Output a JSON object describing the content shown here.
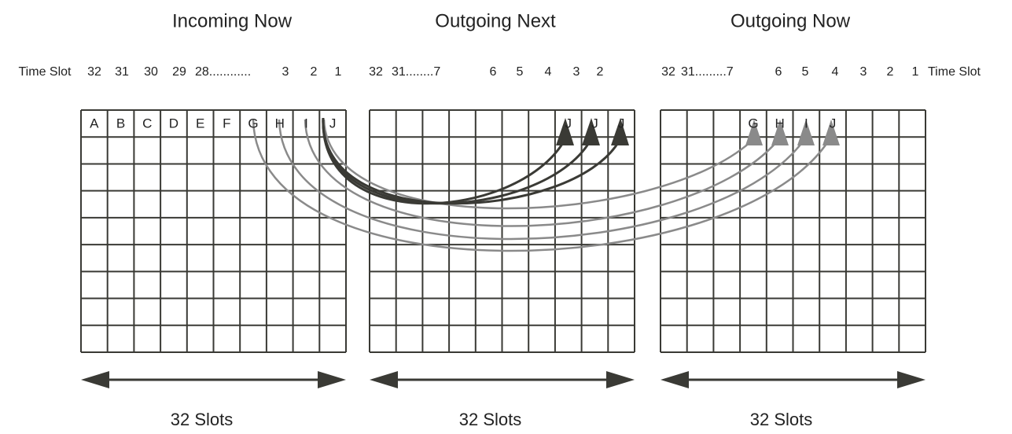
{
  "panels": [
    {
      "title": "Incoming Now",
      "time_slots": [
        "Time Slot",
        "32",
        "31",
        "30",
        "29",
        "28............",
        "3",
        "2",
        "1"
      ],
      "cells": [
        "A",
        "B",
        "C",
        "D",
        "E",
        "F",
        "G",
        "H",
        "I",
        "J"
      ],
      "footer": "32 Slots"
    },
    {
      "title": "Outgoing Next",
      "time_slots": [
        "32",
        "31........7",
        "6",
        "5",
        "4",
        "3",
        "2"
      ],
      "cells": [
        "J",
        "J",
        "J"
      ],
      "footer": "32 Slots"
    },
    {
      "title": "Outgoing Now",
      "time_slots": [
        "32",
        "31.........7",
        "6",
        "5",
        "4",
        "3",
        "2",
        "1",
        "Time Slot"
      ],
      "cells": [
        "G",
        "H",
        "I",
        "J"
      ],
      "footer": "32 Slots"
    }
  ]
}
